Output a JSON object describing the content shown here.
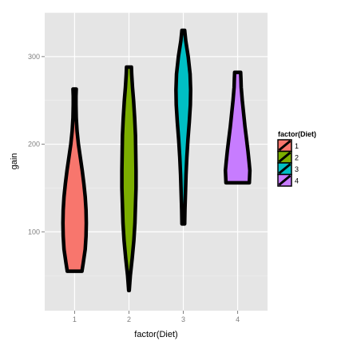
{
  "chart_data": {
    "type": "violin",
    "xlabel": "factor(Diet)",
    "ylabel": "gain",
    "categories": [
      "1",
      "2",
      "3",
      "4"
    ],
    "ylim": [
      10,
      350
    ],
    "yticks": [
      100,
      200,
      300
    ],
    "grid": true,
    "legend": {
      "title": "factor(Diet)",
      "position": "right",
      "entries": [
        "1",
        "2",
        "3",
        "4"
      ]
    },
    "outline_color": "#000000",
    "series": [
      {
        "category": "1",
        "color": "#F8766D",
        "min": 55,
        "max": 263,
        "profile": [
          [
            55,
            0.27
          ],
          [
            65,
            0.32
          ],
          [
            80,
            0.39
          ],
          [
            95,
            0.42
          ],
          [
            110,
            0.43
          ],
          [
            125,
            0.42
          ],
          [
            140,
            0.39
          ],
          [
            155,
            0.34
          ],
          [
            170,
            0.28
          ],
          [
            185,
            0.21
          ],
          [
            200,
            0.14
          ],
          [
            215,
            0.09
          ],
          [
            230,
            0.06
          ],
          [
            245,
            0.05
          ],
          [
            255,
            0.05
          ],
          [
            263,
            0.06
          ]
        ]
      },
      {
        "category": "2",
        "color": "#7CAE00",
        "min": 33,
        "max": 288,
        "profile": [
          [
            33,
            0.01
          ],
          [
            50,
            0.05
          ],
          [
            70,
            0.12
          ],
          [
            90,
            0.18
          ],
          [
            110,
            0.22
          ],
          [
            130,
            0.24
          ],
          [
            150,
            0.26
          ],
          [
            170,
            0.26
          ],
          [
            190,
            0.25
          ],
          [
            210,
            0.24
          ],
          [
            230,
            0.21
          ],
          [
            250,
            0.17
          ],
          [
            265,
            0.13
          ],
          [
            280,
            0.1
          ],
          [
            288,
            0.09
          ]
        ]
      },
      {
        "category": "3",
        "color": "#00BFC4",
        "min": 109,
        "max": 330,
        "profile": [
          [
            109,
            0.05
          ],
          [
            125,
            0.06
          ],
          [
            145,
            0.08
          ],
          [
            165,
            0.1
          ],
          [
            185,
            0.13
          ],
          [
            205,
            0.17
          ],
          [
            225,
            0.22
          ],
          [
            245,
            0.26
          ],
          [
            262,
            0.27
          ],
          [
            280,
            0.25
          ],
          [
            300,
            0.18
          ],
          [
            318,
            0.09
          ],
          [
            330,
            0.05
          ]
        ]
      },
      {
        "category": "4",
        "color": "#C77CFF",
        "min": 156,
        "max": 282,
        "profile": [
          [
            156,
            0.43
          ],
          [
            163,
            0.44
          ],
          [
            170,
            0.45
          ],
          [
            180,
            0.42
          ],
          [
            192,
            0.38
          ],
          [
            205,
            0.33
          ],
          [
            220,
            0.27
          ],
          [
            235,
            0.22
          ],
          [
            250,
            0.17
          ],
          [
            265,
            0.13
          ],
          [
            275,
            0.12
          ],
          [
            282,
            0.11
          ]
        ]
      }
    ]
  }
}
